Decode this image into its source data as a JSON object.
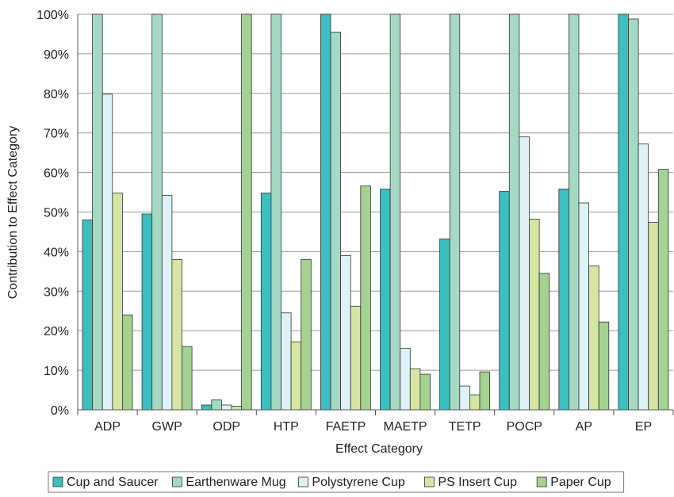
{
  "chart_data": {
    "type": "bar",
    "title": "",
    "xlabel": "Effect Category",
    "ylabel": "Contribution to Effect Category",
    "ylim": [
      0,
      100
    ],
    "y_unit": "%",
    "yticks": [
      0,
      10,
      20,
      30,
      40,
      50,
      60,
      70,
      80,
      90,
      100
    ],
    "grid": true,
    "legend_position": "bottom",
    "categories": [
      "ADP",
      "GWP",
      "ODP",
      "HTP",
      "FAETP",
      "MAETP",
      "TETP",
      "POCP",
      "AP",
      "EP"
    ],
    "series": [
      {
        "name": "Cup and Saucer",
        "color": "#3bbfc0",
        "values": [
          48,
          49.5,
          1.2,
          54.8,
          100,
          55.8,
          43.2,
          55.2,
          55.8,
          100
        ]
      },
      {
        "name": "Earthenware Mug",
        "color": "#a6d9c4",
        "values": [
          100,
          100,
          2.5,
          100,
          95.5,
          100,
          100,
          100,
          100,
          98.8
        ]
      },
      {
        "name": "Polystyrene Cup",
        "color": "#dff2f7",
        "values": [
          79.8,
          54.2,
          1.2,
          24.5,
          39,
          15.5,
          6,
          69,
          52.3,
          67.2
        ]
      },
      {
        "name": "PS Insert Cup",
        "color": "#d6e6a2",
        "values": [
          54.8,
          38,
          0.9,
          17.2,
          26.2,
          10.4,
          3.8,
          48.2,
          36.4,
          47.4
        ]
      },
      {
        "name": "Paper Cup",
        "color": "#a3d291",
        "values": [
          24,
          16,
          100,
          38,
          56.6,
          9,
          9.6,
          34.5,
          22.2,
          60.8
        ]
      }
    ]
  }
}
